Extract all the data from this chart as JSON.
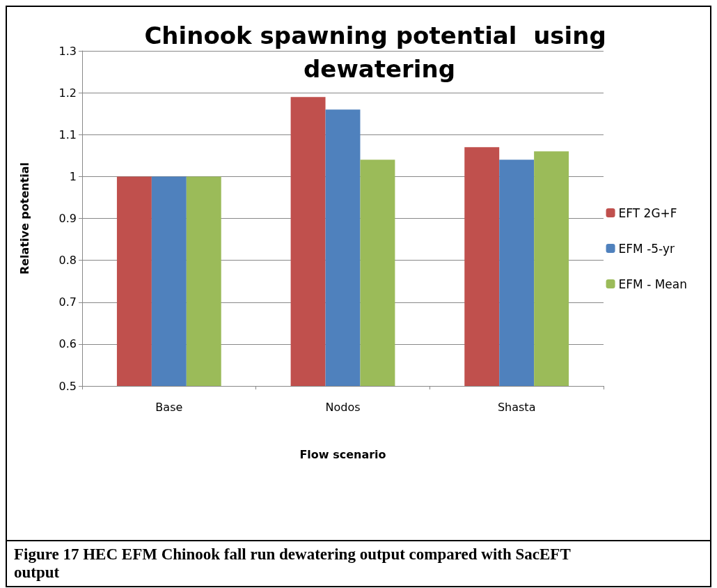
{
  "chart_data": {
    "type": "bar",
    "title": "Chinook spawning potential  using dewatering",
    "xlabel": "Flow scenario",
    "ylabel": "Relative potential",
    "categories": [
      "Base",
      "Nodos",
      "Shasta"
    ],
    "series": [
      {
        "name": "EFT 2G+F",
        "color": "#c0504d",
        "values": [
          1.0,
          1.19,
          1.07
        ]
      },
      {
        "name": "EFM -5-yr",
        "color": "#4f81bd",
        "values": [
          1.0,
          1.16,
          1.04
        ]
      },
      {
        "name": "EFM - Mean",
        "color": "#9bbb59",
        "values": [
          1.0,
          1.04,
          1.06
        ]
      }
    ],
    "ylim": [
      0.5,
      1.3
    ],
    "yticks": [
      0.5,
      0.6,
      0.7,
      0.8,
      0.9,
      1,
      1.1,
      1.2,
      1.3
    ],
    "grid": "y",
    "legend": "right",
    "annotations": [
      "Figure 17 HEC EFM Chinook fall run dewatering output compared with SacEFT output"
    ]
  }
}
